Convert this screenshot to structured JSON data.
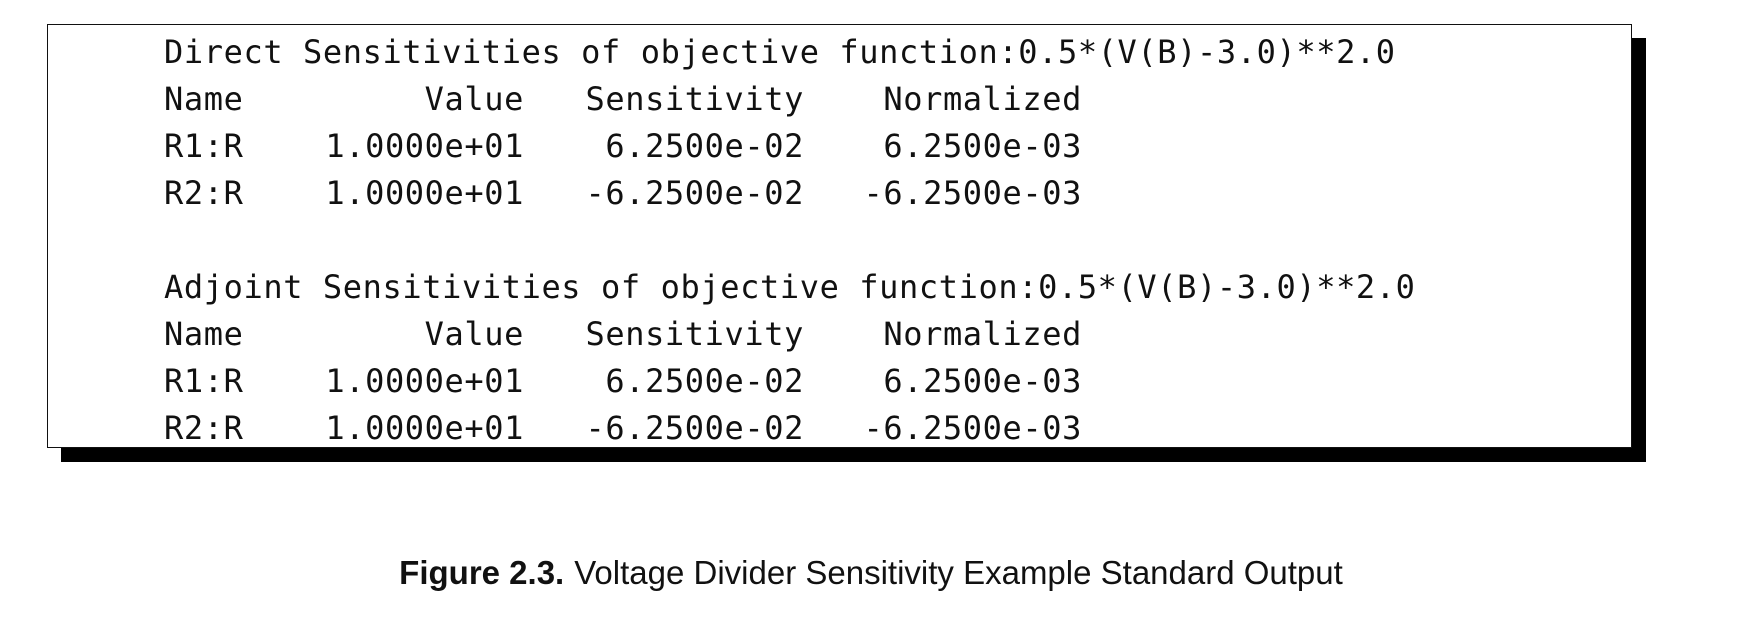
{
  "direct": {
    "title": "Direct Sensitivities of objective function:0.5*(V(B)-3.0)**2.0",
    "header": {
      "name": "Name",
      "value": "Value",
      "sensitivity": "Sensitivity",
      "normalized": "Normalized"
    },
    "rows": [
      {
        "name": "R1:R",
        "value": "1.0000e+01",
        "sensitivity": "6.2500e-02",
        "normalized": "6.2500e-03"
      },
      {
        "name": "R2:R",
        "value": "1.0000e+01",
        "sensitivity": "-6.2500e-02",
        "normalized": "-6.2500e-03"
      }
    ]
  },
  "adjoint": {
    "title": "Adjoint Sensitivities of objective function:0.5*(V(B)-3.0)**2.0",
    "header": {
      "name": "Name",
      "value": "Value",
      "sensitivity": "Sensitivity",
      "normalized": "Normalized"
    },
    "rows": [
      {
        "name": "R1:R",
        "value": "1.0000e+01",
        "sensitivity": "6.2500e-02",
        "normalized": "6.2500e-03"
      },
      {
        "name": "R2:R",
        "value": "1.0000e+01",
        "sensitivity": "-6.2500e-02",
        "normalized": "-6.2500e-03"
      }
    ]
  },
  "caption": {
    "label": "Figure 2.3.",
    "text": "Voltage Divider Sensitivity Example Standard Output"
  }
}
